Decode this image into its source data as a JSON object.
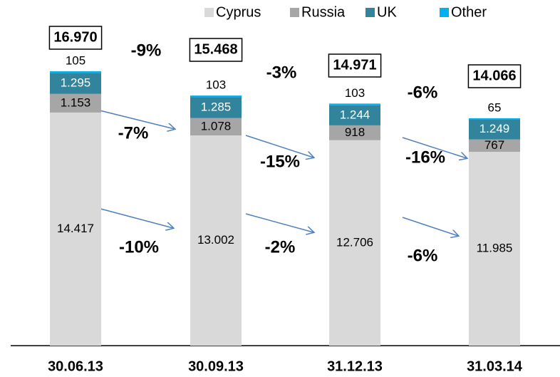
{
  "chart_data": {
    "type": "stacked_bar",
    "categories": [
      "30.06.13",
      "30.09.13",
      "31.12.13",
      "31.03.14"
    ],
    "series": [
      {
        "name": "Cyprus",
        "color": "#d9d9d9",
        "values": [
          14417,
          13002,
          12706,
          11985
        ],
        "value_labels": [
          "14.417",
          "13.002",
          "12.706",
          "11.985"
        ]
      },
      {
        "name": "Russia",
        "color": "#a6a6a6",
        "values": [
          1153,
          1078,
          918,
          767
        ],
        "value_labels": [
          "1.153",
          "1.078",
          "918",
          "767"
        ]
      },
      {
        "name": "UK",
        "color": "#31849b",
        "values": [
          1295,
          1285,
          1244,
          1249
        ],
        "value_labels": [
          "1.295",
          "1.285",
          "1.244",
          "1.249"
        ]
      },
      {
        "name": "Other",
        "color": "#00b0f0",
        "values": [
          105,
          103,
          103,
          65
        ],
        "value_labels": [
          "105",
          "103",
          "103",
          "65"
        ]
      }
    ],
    "totals": {
      "values": [
        16970,
        15468,
        14971,
        14066
      ],
      "value_labels": [
        "16.970",
        "15.468",
        "14.971",
        "14.066"
      ]
    },
    "annotations": [
      "-9%",
      "-3%",
      "-6%",
      "-7%",
      "-15%",
      "-16%",
      "-10%",
      "-2%",
      "-6%"
    ]
  }
}
